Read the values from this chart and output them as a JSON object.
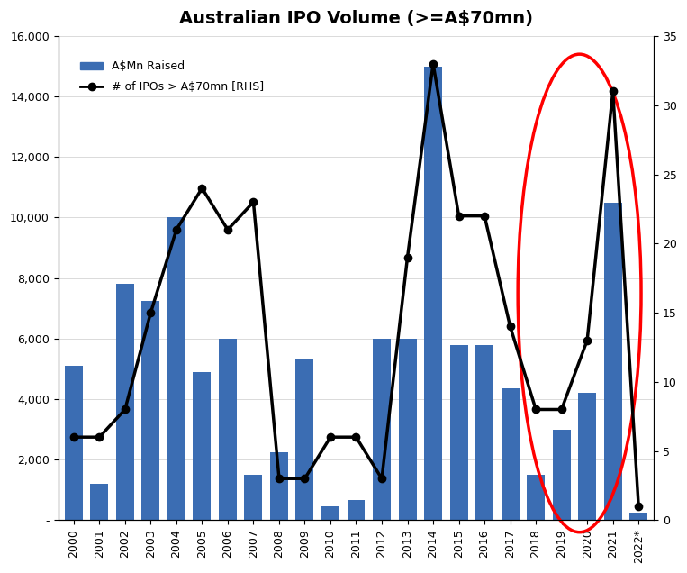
{
  "years": [
    "2000",
    "2001",
    "2002",
    "2003",
    "2004",
    "2005",
    "2006",
    "2007",
    "2008",
    "2009",
    "2010",
    "2011",
    "2012",
    "2013",
    "2014",
    "2015",
    "2016",
    "2017",
    "2018",
    "2019",
    "2020",
    "2021",
    "2022*"
  ],
  "bar_values": [
    5100,
    1200,
    7800,
    7250,
    10000,
    4900,
    6000,
    1500,
    2250,
    5300,
    450,
    650,
    6000,
    6000,
    15000,
    5800,
    5800,
    4350,
    1500,
    3000,
    4200,
    10500,
    250
  ],
  "line_values": [
    6,
    6,
    8,
    15,
    21,
    24,
    21,
    23,
    3,
    3,
    6,
    6,
    3,
    19,
    33,
    22,
    22,
    14,
    8,
    8,
    13,
    31,
    1
  ],
  "bar_color": "#3b6db3",
  "line_color": "#000000",
  "title": "Australian IPO Volume (>=A$70mn)",
  "title_fontsize": 14,
  "ylim_left": [
    0,
    16000
  ],
  "ylim_right": [
    0,
    35
  ],
  "yticks_left": [
    0,
    2000,
    4000,
    6000,
    8000,
    10000,
    12000,
    14000,
    16000
  ],
  "ytick_labels_left": [
    "-",
    "2,000",
    "4,000",
    "6,000",
    "8,000",
    "10,000",
    "12,000",
    "14,000",
    "16,000"
  ],
  "yticks_right": [
    0,
    5,
    10,
    15,
    20,
    25,
    30,
    35
  ],
  "legend_bar_label": "A$Mn Raised",
  "legend_line_label": "# of IPOs > A$70mn [RHS]",
  "ellipse_color": "red",
  "ellipse_linewidth": 2.5,
  "bg_color": "#f0f0f0"
}
